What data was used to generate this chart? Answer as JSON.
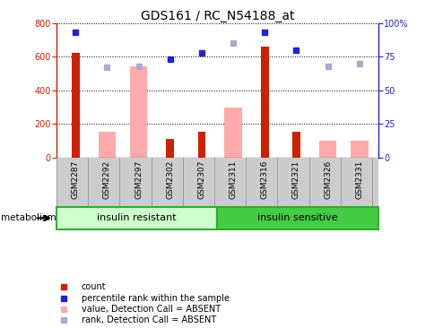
{
  "title": "GDS161 / RC_N54188_at",
  "samples": [
    "GSM2287",
    "GSM2292",
    "GSM2297",
    "GSM2302",
    "GSM2307",
    "GSM2311",
    "GSM2316",
    "GSM2321",
    "GSM2326",
    "GSM2331"
  ],
  "count_values": [
    620,
    0,
    0,
    110,
    155,
    0,
    660,
    155,
    0,
    0
  ],
  "pink_bar_values": [
    0,
    155,
    540,
    0,
    0,
    295,
    0,
    0,
    100,
    100
  ],
  "blue_square_values": [
    93,
    0,
    0,
    73,
    78,
    0,
    93,
    80,
    0,
    0
  ],
  "lavender_square_values": [
    0,
    67,
    68,
    0,
    0,
    85,
    0,
    0,
    68,
    70
  ],
  "group1_label": "insulin resistant",
  "group2_label": "insulin sensitive",
  "pathway_label": "metabolism",
  "left_ylim": [
    0,
    800
  ],
  "right_ylim": [
    0,
    100
  ],
  "left_yticks": [
    0,
    200,
    400,
    600,
    800
  ],
  "right_yticks": [
    0,
    25,
    50,
    75,
    100
  ],
  "right_yticklabels": [
    "0",
    "25",
    "50",
    "75",
    "100%"
  ],
  "bar_color": "#cc2200",
  "pink_color": "#ffaaaa",
  "blue_color": "#2222cc",
  "lavender_color": "#aaaacc",
  "group1_color": "#ccffcc",
  "group2_color": "#44cc44",
  "xtick_bg_color": "#cccccc",
  "legend_items": [
    "count",
    "percentile rank within the sample",
    "value, Detection Call = ABSENT",
    "rank, Detection Call = ABSENT"
  ],
  "legend_colors": [
    "#cc2200",
    "#2222cc",
    "#ffaaaa",
    "#aaaacc"
  ]
}
